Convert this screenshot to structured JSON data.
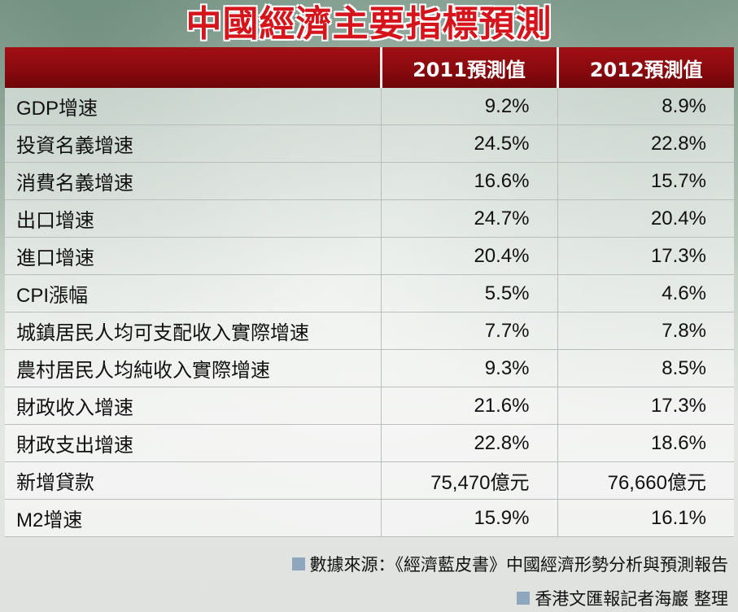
{
  "title": "中國經濟主要指標預測",
  "table": {
    "headers": [
      "",
      "2011預測值",
      "2012預測值"
    ],
    "rows": [
      {
        "label": "GDP增速",
        "v2011": "9.2%",
        "v2012": "8.9%"
      },
      {
        "label": "投資名義增速",
        "v2011": "24.5%",
        "v2012": "22.8%"
      },
      {
        "label": "消費名義增速",
        "v2011": "16.6%",
        "v2012": "15.7%"
      },
      {
        "label": "出口增速",
        "v2011": "24.7%",
        "v2012": "20.4%"
      },
      {
        "label": "進口增速",
        "v2011": "20.4%",
        "v2012": "17.3%"
      },
      {
        "label": "CPI漲幅",
        "v2011": "5.5%",
        "v2012": "4.6%"
      },
      {
        "label": "城鎮居民人均可支配收入實際增速",
        "v2011": "7.7%",
        "v2012": "7.8%"
      },
      {
        "label": "農村居民人均純收入實際增速",
        "v2011": "9.3%",
        "v2012": "8.5%"
      },
      {
        "label": "財政收入增速",
        "v2011": "21.6%",
        "v2012": "17.3%"
      },
      {
        "label": "財政支出增速",
        "v2011": "22.8%",
        "v2012": "18.6%"
      },
      {
        "label": "新增貸款",
        "v2011": "75,470億元",
        "v2012": "76,660億元"
      },
      {
        "label": "M2增速",
        "v2011": "15.9%",
        "v2012": "16.1%"
      }
    ]
  },
  "footer": {
    "source": "數據來源：《經濟藍皮書》中國經濟形勢分析與預測報告",
    "credit": "香港文匯報記者海巖 整理"
  },
  "colors": {
    "title": "#d5151b",
    "header_bg": "#8a0a0e",
    "header_text": "#ffffff",
    "footer_square": "#8ea7bf"
  }
}
